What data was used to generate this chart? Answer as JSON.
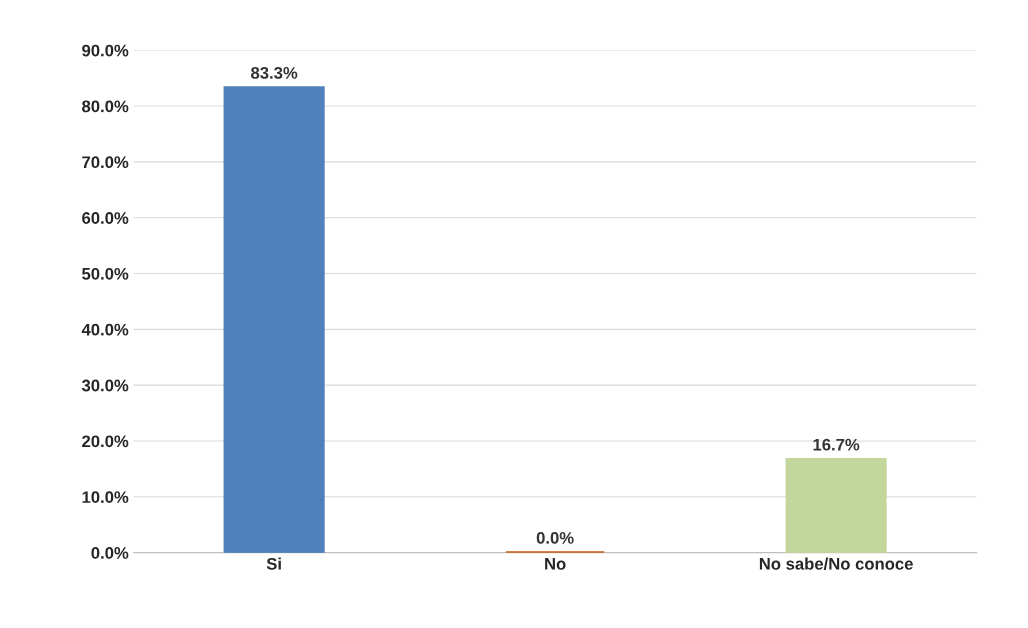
{
  "chart_data": {
    "type": "bar",
    "categories": [
      "Si",
      "No",
      "No sabe/No conoce"
    ],
    "values": [
      83.3,
      0.0,
      16.7
    ],
    "colors": [
      "#4f81bd",
      "#c55a11",
      "#c3d69b"
    ],
    "value_labels": [
      "83.3%",
      "0.0%",
      "16.7%"
    ],
    "ylim": [
      0,
      90
    ],
    "yticks": [
      {
        "value": 0,
        "label": "0.0%"
      },
      {
        "value": 10,
        "label": "10.0%"
      },
      {
        "value": 20,
        "label": "20.0%"
      },
      {
        "value": 30,
        "label": "30.0%"
      },
      {
        "value": 40,
        "label": "40.0%"
      },
      {
        "value": 50,
        "label": "50.0%"
      },
      {
        "value": 60,
        "label": "60.0%"
      },
      {
        "value": 70,
        "label": "70.0%"
      },
      {
        "value": 80,
        "label": "80.0%"
      },
      {
        "value": 90,
        "label": "90.0%"
      }
    ],
    "grid": "y"
  }
}
